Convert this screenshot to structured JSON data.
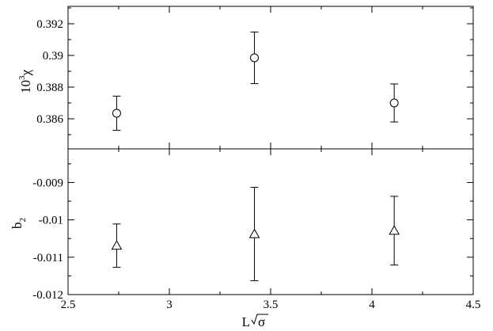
{
  "chart_data": [
    {
      "type": "scatter",
      "panel": "top",
      "ylabel_parts": {
        "base": "10",
        "sup": "3",
        "tail": "χ"
      },
      "xlim": [
        2.5,
        4.5
      ],
      "ylim": [
        0.3841,
        0.3931
      ],
      "xticks": [
        "2.5",
        "3",
        "3.5",
        "4",
        "4.5"
      ],
      "yticks": [
        "0.386",
        "0.388",
        "0.39",
        "0.392"
      ],
      "ytick_values": [
        0.386,
        0.388,
        0.39,
        0.392
      ],
      "marker": "circle",
      "series": [
        {
          "x": [
            2.74,
            3.42,
            4.11
          ],
          "y": [
            0.38635,
            0.38985,
            0.387
          ],
          "yerr": [
            0.00108,
            0.00163,
            0.0012
          ]
        }
      ]
    },
    {
      "type": "scatter",
      "panel": "bottom",
      "ylabel_parts": {
        "base": "b",
        "sub": "2"
      },
      "xlabel_parts": {
        "base": "L",
        "radicand": "σ"
      },
      "xlim": [
        2.5,
        4.5
      ],
      "ylim": [
        -0.012,
        -0.0081
      ],
      "xticks": [
        "2.5",
        "3",
        "3.5",
        "4",
        "4.5"
      ],
      "xtick_values": [
        2.5,
        3,
        3.5,
        4,
        4.5
      ],
      "yticks": [
        "-0.009",
        "-0.01",
        "-0.011",
        "-0.012"
      ],
      "ytick_values": [
        -0.009,
        -0.01,
        -0.011,
        -0.012
      ],
      "marker": "triangle",
      "series": [
        {
          "x": [
            2.74,
            3.42,
            4.11
          ],
          "y": [
            -0.01069,
            -0.01038,
            -0.01029
          ],
          "yerr": [
            0.00058,
            0.00125,
            0.00092
          ]
        }
      ]
    }
  ]
}
